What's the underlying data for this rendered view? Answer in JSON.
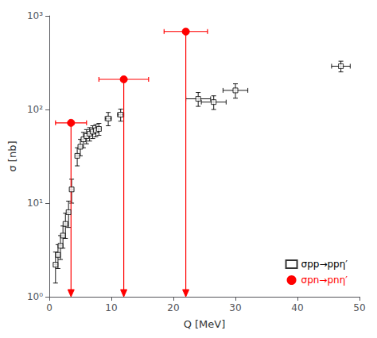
{
  "chart_data": {
    "type": "scatter",
    "xlabel": "Q [MeV]",
    "ylabel": "σ [nb]",
    "xlim": [
      0,
      50
    ],
    "ylim": [
      1,
      1000
    ],
    "xticks": [
      0,
      10,
      20,
      30,
      40,
      50
    ],
    "yticks": [
      {
        "value": 1,
        "label": "10⁰"
      },
      {
        "value": 10,
        "label": "10¹"
      },
      {
        "value": 100,
        "label": "10²"
      },
      {
        "value": 1000,
        "label": "10³"
      }
    ],
    "log": "y",
    "grid": false,
    "legend": "lower right",
    "series": [
      {
        "name": "σpp→ppη′",
        "type": "scatter",
        "color": "black",
        "marker": "open_square",
        "x": [
          1.0,
          1.4,
          1.8,
          2.2,
          2.6,
          3.1,
          3.6,
          4.5,
          5.0,
          5.5,
          6.0,
          6.5,
          7.0,
          7.5,
          8.0,
          9.5,
          11.5,
          24.0,
          26.5,
          30.0,
          47.0
        ],
        "values": [
          2.2,
          2.8,
          3.5,
          4.5,
          6.0,
          8.0,
          14.0,
          32.0,
          40.0,
          48.0,
          52.0,
          55.0,
          58.0,
          60.0,
          62.0,
          80.0,
          88.0,
          130.0,
          120.0,
          160.0,
          290.0
        ],
        "xerr": [
          0.3,
          0.3,
          0.3,
          0.3,
          0.3,
          0.3,
          0.3,
          0.3,
          0.3,
          0.3,
          0.3,
          0.3,
          0.3,
          0.3,
          0.3,
          0.5,
          0.5,
          2.0,
          2.0,
          2.0,
          1.5
        ],
        "yerr": [
          0.8,
          0.8,
          1.0,
          1.2,
          1.8,
          2.5,
          4.0,
          7.0,
          8.0,
          9.0,
          9.0,
          9.0,
          9.0,
          9.0,
          9.0,
          13.0,
          13.0,
          22.0,
          20.0,
          28.0,
          38.0
        ]
      },
      {
        "name": "σpn→pnη′",
        "type": "upper_limit",
        "color": "red",
        "marker": "circle",
        "x": [
          3.5,
          12.0,
          22.0
        ],
        "values": [
          72.0,
          210.0,
          680.0
        ],
        "xerr": [
          2.5,
          4.0,
          3.5
        ]
      }
    ]
  }
}
